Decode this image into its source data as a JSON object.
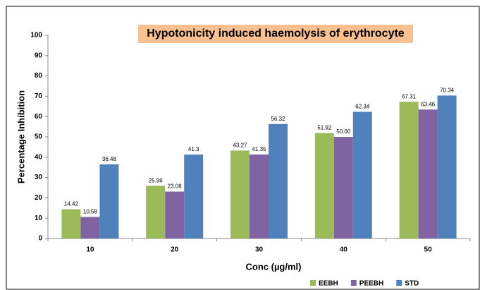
{
  "chart_data": {
    "type": "bar",
    "title": "Hypotonicity induced haemolysis of erythrocyte",
    "x_label": "Conc (µg/ml)",
    "y_label": "Percentage Inhibition",
    "categories": [
      "10",
      "20",
      "30",
      "40",
      "50"
    ],
    "series": [
      {
        "name": "EEBH",
        "color": "#9bbb59",
        "values": [
          14.42,
          25.96,
          43.27,
          51.92,
          67.31
        ],
        "value_labels": [
          "14.42",
          "25.96",
          "43.27",
          "51.92",
          "67.31"
        ]
      },
      {
        "name": "PEEBH",
        "color": "#8064a2",
        "values": [
          10.58,
          23.08,
          41.35,
          50,
          63.46
        ],
        "value_labels": [
          "10.58",
          "23.08",
          "41.35",
          "50.00",
          "63.46"
        ]
      },
      {
        "name": "STD",
        "color": "#4f81bd",
        "values": [
          36.48,
          41.3,
          56.32,
          62.34,
          70.34
        ],
        "value_labels": [
          "36.48",
          "41.3",
          "56.32",
          "62.34",
          "70.34"
        ]
      }
    ],
    "ylim": [
      0,
      100
    ],
    "yticks": [
      0,
      10,
      20,
      30,
      40,
      50,
      60,
      70,
      80,
      90,
      100
    ],
    "grid": false,
    "legend": "bottom-right"
  }
}
